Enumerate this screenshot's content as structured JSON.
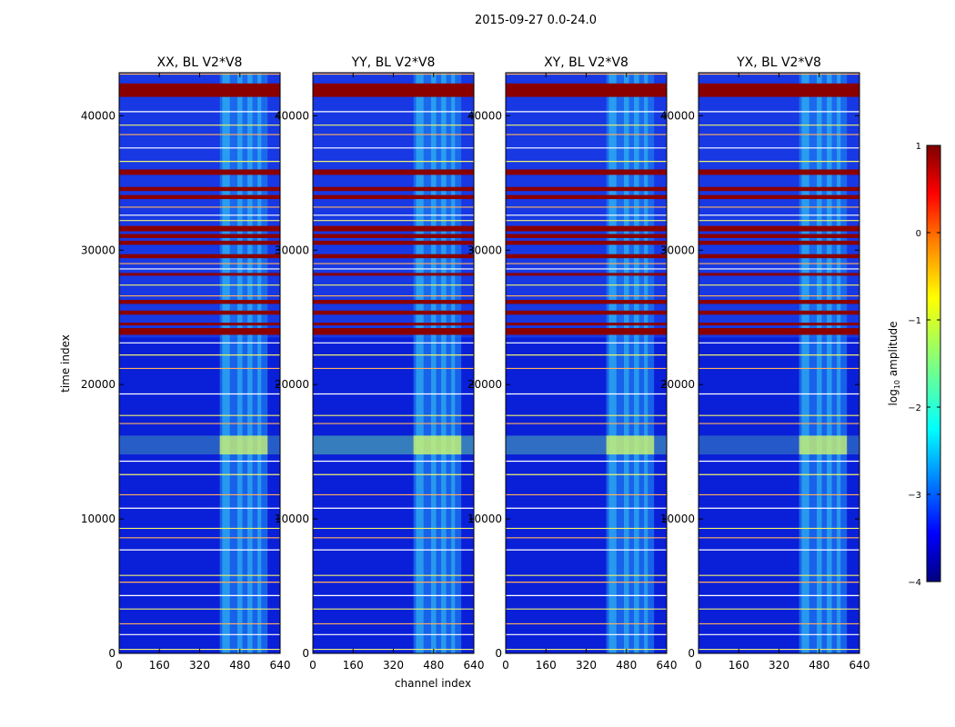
{
  "chart_data": {
    "type": "heatmap",
    "title": "2015-09-27 0.0-24.0",
    "xlabel": "channel index",
    "ylabel": "time index",
    "xlim": [
      0,
      640
    ],
    "ylim": [
      0,
      43200
    ],
    "x_ticks": [
      0,
      160,
      320,
      480,
      640
    ],
    "y_ticks": [
      0,
      10000,
      20000,
      30000,
      40000
    ],
    "panels": [
      {
        "title": "XX, BL V2*V8",
        "band_level": 0.3
      },
      {
        "title": "YY, BL V2*V8",
        "band_level": 0.45
      },
      {
        "title": "XY, BL V2*V8",
        "band_level": 0.38
      },
      {
        "title": "YX, BL V2*V8",
        "band_level": 0.28
      }
    ],
    "colorbar": {
      "label": "log10 amplitude",
      "range": [
        -4,
        1
      ],
      "ticks": [
        1,
        0,
        -1,
        -2,
        -3,
        -4
      ],
      "stops": [
        "#00007f",
        "#0000ff",
        "#00ffff",
        "#7fff7f",
        "#ffff00",
        "#ff7f00",
        "#ff0000",
        "#7f0000"
      ]
    },
    "features": {
      "background_level": -3.4,
      "rfi_channel_range": [
        400,
        590
      ],
      "rfi_level": -2.4,
      "broadband_event_time": [
        14800,
        16200
      ],
      "saturated_rows": [
        [
          41400,
          42400
        ],
        [
          35600,
          36000
        ],
        [
          34400,
          34700
        ],
        [
          33800,
          34100
        ],
        [
          31400,
          31800
        ],
        [
          30900,
          31200
        ],
        [
          30400,
          30700
        ],
        [
          29400,
          29700
        ],
        [
          28100,
          28300
        ],
        [
          26000,
          26300
        ],
        [
          25200,
          25500
        ],
        [
          24400,
          24600
        ],
        [
          23700,
          24200
        ]
      ],
      "flag_lines": [
        300,
        1400,
        2200,
        3300,
        4300,
        5300,
        5800,
        7700,
        8600,
        9300,
        10800,
        11800,
        13300,
        14300,
        17100,
        17700,
        19300,
        21200,
        22200,
        23100,
        26600,
        27400,
        28600,
        29000,
        32200,
        32600,
        33200,
        36600,
        37600,
        38600,
        39300,
        40300,
        43100
      ]
    }
  }
}
